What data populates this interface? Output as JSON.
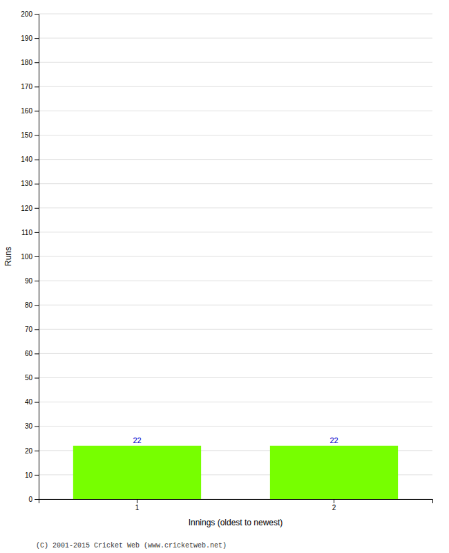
{
  "chart_data": {
    "type": "bar",
    "xlabel": "Innings (oldest to newest)",
    "ylabel": "Runs",
    "categories": [
      "1",
      "2"
    ],
    "values": [
      22,
      22
    ],
    "color": "#77ff00",
    "ylim": [
      0,
      200
    ],
    "yticks": [
      0,
      10,
      20,
      30,
      40,
      50,
      60,
      70,
      80,
      90,
      100,
      110,
      120,
      130,
      140,
      150,
      160,
      170,
      180,
      190,
      200
    ],
    "grid": true,
    "data_labels": true,
    "footer": "(C) 2001-2015 Cricket Web (www.cricketweb.net)"
  }
}
